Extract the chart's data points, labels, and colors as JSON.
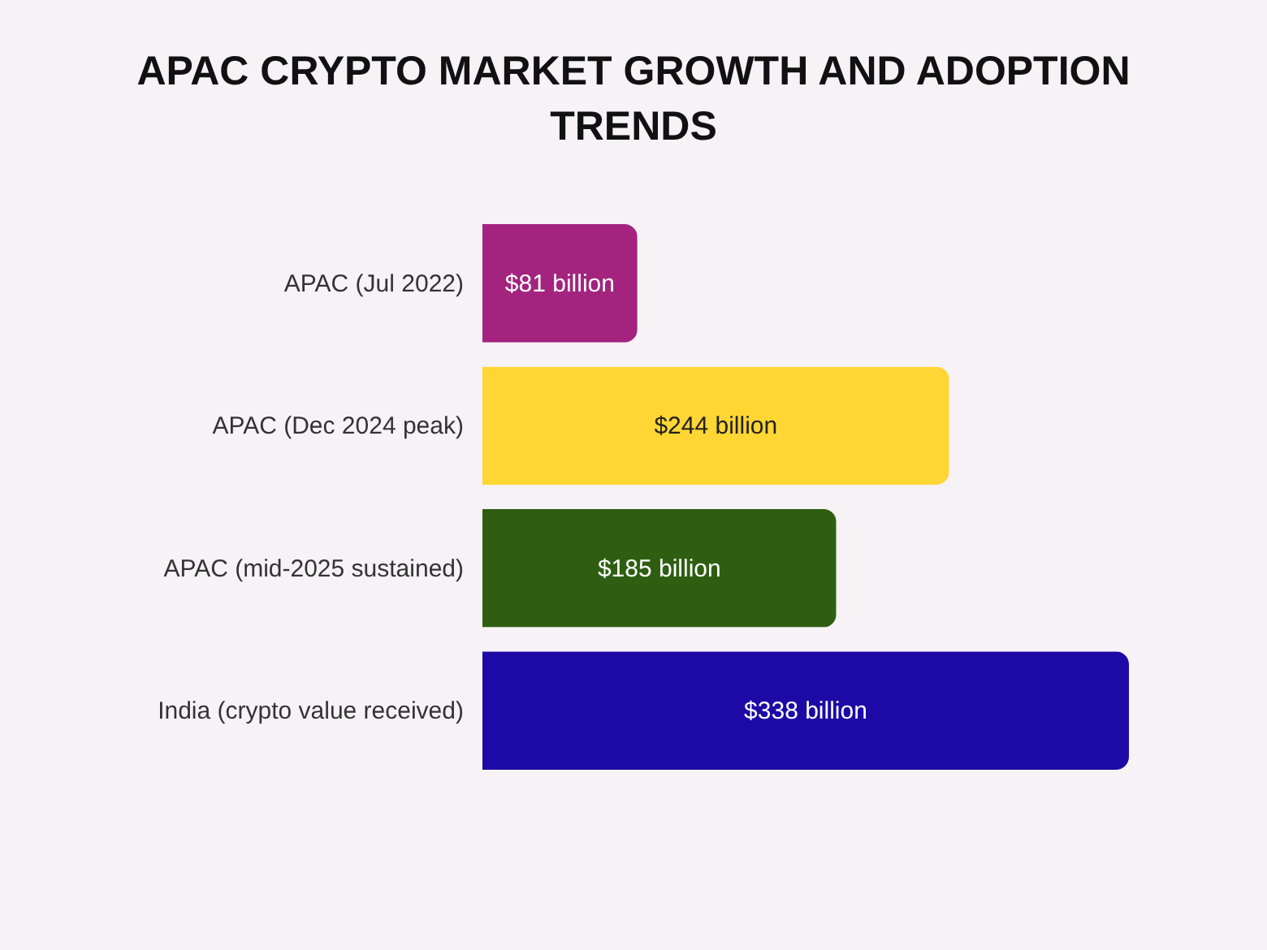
{
  "chart_data": {
    "type": "bar",
    "orientation": "horizontal",
    "title": "APAC CRYPTO MARKET GROWTH AND ADOPTION TRENDS",
    "categories": [
      "APAC (Jul 2022)",
      "APAC (Dec 2024 peak)",
      "APAC (mid-2025 sustained)",
      "India (crypto value received)"
    ],
    "values": [
      81,
      244,
      185,
      338
    ],
    "colors": [
      "#a3237f",
      "#ffd633",
      "#2f5e12",
      "#1d0aa6"
    ],
    "value_labels": [
      "$81 billion",
      "$244 billion",
      "$185 billion",
      "$338 billion"
    ]
  }
}
